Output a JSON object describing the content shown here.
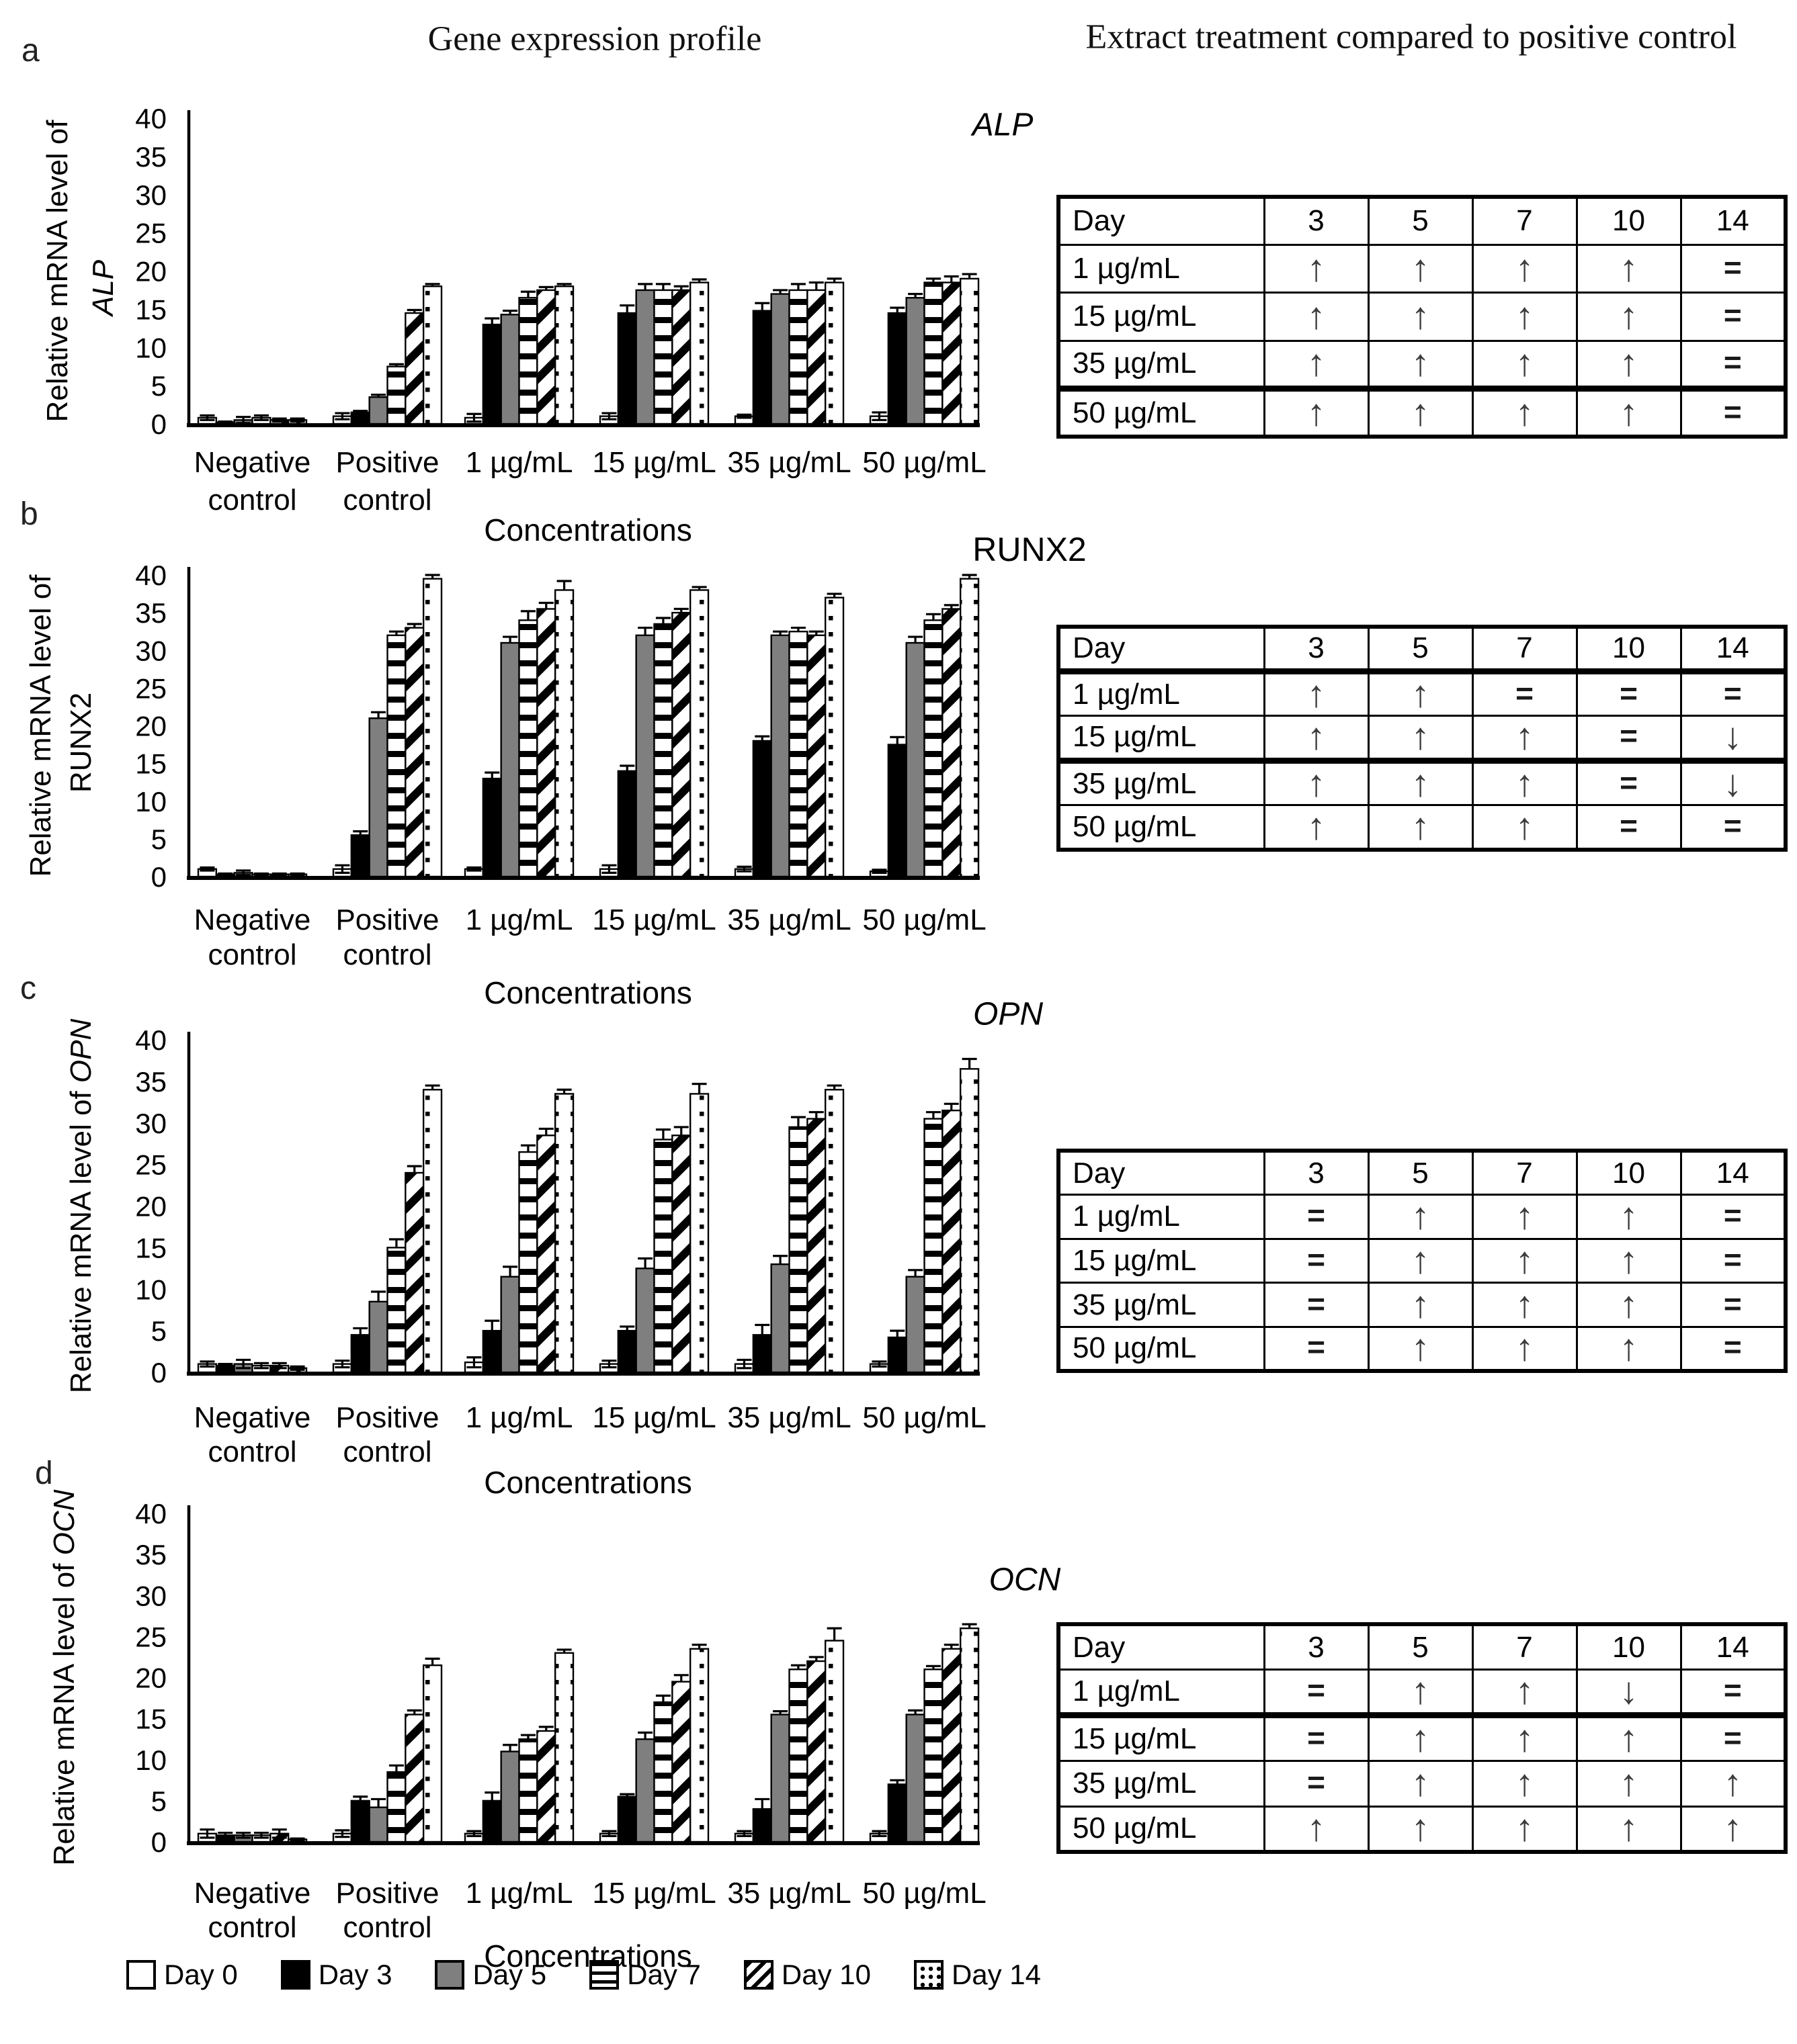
{
  "figure": {
    "panel_labels": [
      "a",
      "b",
      "c",
      "d"
    ],
    "left_title": "Gene expression profile",
    "right_title": "Extract treatment compared to positive control"
  },
  "colors": {
    "ink": "#000000",
    "series_gray": "#7f7f7f",
    "arrow": "#3c3c3c",
    "background": "#ffffff"
  },
  "legend": {
    "items": [
      {
        "label": "Day 0",
        "pattern": "white"
      },
      {
        "label": "Day 3",
        "pattern": "black"
      },
      {
        "label": "Day 5",
        "pattern": "gray"
      },
      {
        "label": "Day 7",
        "pattern": "hlines"
      },
      {
        "label": "Day 10",
        "pattern": "diag"
      },
      {
        "label": "Day 14",
        "pattern": "dots"
      }
    ]
  },
  "chart_data": [
    {
      "panel": "a",
      "type": "bar",
      "title": "ALP",
      "title_italic": true,
      "ylabel": "Relative mRNA level of ALP",
      "ylabel_prefix": "Relative mRNA level of",
      "gene": "ALP",
      "gene_italic": true,
      "xlabel": "Concentrations",
      "ylim": [
        0,
        40
      ],
      "ytick_step": 5,
      "grid": false,
      "legend_position": "bottom-shared",
      "categories": [
        "Negative control",
        "Positive control",
        "1 µg/mL",
        "15 µg/mL",
        "35 µg/mL",
        "50 µg/mL"
      ],
      "series": [
        {
          "name": "Day 0",
          "pattern": "white",
          "values": [
            0.8,
            1.0,
            0.8,
            1.0,
            1.0,
            1.0
          ],
          "errors": [
            0.3,
            0.4,
            0.5,
            0.4,
            0.2,
            0.5
          ]
        },
        {
          "name": "Day 3",
          "pattern": "black",
          "values": [
            0.2,
            1.5,
            13.0,
            14.5,
            14.8,
            14.5
          ],
          "errors": [
            0.1,
            0.2,
            0.8,
            1.0,
            1.0,
            0.7
          ]
        },
        {
          "name": "Day 5",
          "pattern": "gray",
          "values": [
            0.5,
            3.5,
            14.3,
            17.5,
            17.0,
            16.5
          ],
          "errors": [
            0.4,
            0.3,
            0.5,
            0.8,
            0.5,
            0.5
          ]
        },
        {
          "name": "Day 7",
          "pattern": "hlines",
          "values": [
            0.8,
            7.5,
            16.5,
            17.5,
            17.5,
            18.5
          ],
          "errors": [
            0.3,
            0.3,
            0.8,
            0.8,
            0.8,
            0.5
          ]
        },
        {
          "name": "Day 10",
          "pattern": "diag",
          "values": [
            0.5,
            14.5,
            17.5,
            17.5,
            17.5,
            18.5
          ],
          "errors": [
            0.2,
            0.4,
            0.4,
            0.5,
            1.0,
            0.8
          ]
        },
        {
          "name": "Day 14",
          "pattern": "dots",
          "values": [
            0.5,
            18.0,
            18.0,
            18.5,
            18.5,
            19.0
          ],
          "errors": [
            0.2,
            0.3,
            0.3,
            0.4,
            0.5,
            0.6
          ]
        }
      ],
      "comparison_table": {
        "header": [
          "Day",
          "3",
          "5",
          "7",
          "10",
          "14"
        ],
        "rows": [
          {
            "label": "1 µg/mL",
            "cells": [
              "↑",
              "↑",
              "↑",
              "↑",
              "="
            ]
          },
          {
            "label": "15 µg/mL",
            "cells": [
              "↑",
              "↑",
              "↑",
              "↑",
              "="
            ]
          },
          {
            "label": "35 µg/mL",
            "cells": [
              "↑",
              "↑",
              "↑",
              "↑",
              "="
            ]
          },
          {
            "label": "50 µg/mL",
            "cells": [
              "↑",
              "↑",
              "↑",
              "↑",
              "="
            ]
          }
        ]
      }
    },
    {
      "panel": "b",
      "type": "bar",
      "title": "RUNX2",
      "title_italic": false,
      "ylabel": "Relative mRNA level of RUNX2",
      "ylabel_prefix": "Relative mRNA level of",
      "gene": "RUNX2",
      "gene_italic": false,
      "xlabel": "Concentrations",
      "ylim": [
        0,
        40
      ],
      "ytick_step": 5,
      "grid": false,
      "categories": [
        "Negative control",
        "Positive control",
        "1 µg/mL",
        "15 µg/mL",
        "35 µg/mL",
        "50 µg/mL"
      ],
      "series": [
        {
          "name": "Day 0",
          "pattern": "white",
          "values": [
            1.0,
            1.0,
            1.0,
            1.0,
            1.0,
            0.7
          ],
          "errors": [
            0.2,
            0.5,
            0.2,
            0.5,
            0.3,
            0.2
          ]
        },
        {
          "name": "Day 3",
          "pattern": "black",
          "values": [
            0.3,
            5.5,
            13.0,
            14.0,
            18.0,
            17.5
          ],
          "errors": [
            0.1,
            0.5,
            0.8,
            0.7,
            0.6,
            1.0
          ]
        },
        {
          "name": "Day 5",
          "pattern": "gray",
          "values": [
            0.5,
            21.0,
            31.0,
            32.0,
            32.0,
            31.0
          ],
          "errors": [
            0.3,
            0.8,
            0.8,
            1.0,
            0.5,
            0.8
          ]
        },
        {
          "name": "Day 7",
          "pattern": "hlines",
          "values": [
            0.3,
            32.0,
            34.0,
            33.5,
            32.5,
            34.0
          ],
          "errors": [
            0.1,
            0.5,
            1.2,
            0.8,
            0.5,
            0.8
          ]
        },
        {
          "name": "Day 10",
          "pattern": "diag",
          "values": [
            0.3,
            33.0,
            35.5,
            35.0,
            32.0,
            35.5
          ],
          "errors": [
            0.1,
            0.5,
            0.8,
            0.5,
            0.5,
            0.5
          ]
        },
        {
          "name": "Day 14",
          "pattern": "dots",
          "values": [
            0.3,
            39.5,
            38.0,
            38.0,
            37.0,
            39.5
          ],
          "errors": [
            0.1,
            0.5,
            1.2,
            0.4,
            0.5,
            0.5
          ]
        }
      ],
      "comparison_table": {
        "header": [
          "Day",
          "3",
          "5",
          "7",
          "10",
          "14"
        ],
        "rows": [
          {
            "label": "1 µg/mL",
            "cells": [
              "↑",
              "↑",
              "=",
              "=",
              "="
            ]
          },
          {
            "label": "15 µg/mL",
            "cells": [
              "↑",
              "↑",
              "↑",
              "=",
              "↓"
            ]
          },
          {
            "label": "35 µg/mL",
            "cells": [
              "↑",
              "↑",
              "↑",
              "=",
              "↓"
            ]
          },
          {
            "label": "50 µg/mL",
            "cells": [
              "↑",
              "↑",
              "↑",
              "=",
              "="
            ]
          }
        ]
      }
    },
    {
      "panel": "c",
      "type": "bar",
      "title": "OPN",
      "title_italic": true,
      "ylabel": "Relative mRNA level of OPN",
      "ylabel_prefix": "Relative mRNA level of",
      "gene": "OPN",
      "gene_italic": true,
      "xlabel": "Concentrations",
      "ylim": [
        0,
        40
      ],
      "ytick_step": 5,
      "grid": false,
      "categories": [
        "Negative control",
        "Positive control",
        "1 µg/mL",
        "15 µg/mL",
        "35 µg/mL",
        "50 µg/mL"
      ],
      "series": [
        {
          "name": "Day 0",
          "pattern": "white",
          "values": [
            1.0,
            1.0,
            1.2,
            1.0,
            1.0,
            1.0
          ],
          "errors": [
            0.3,
            0.4,
            0.6,
            0.4,
            0.5,
            0.3
          ]
        },
        {
          "name": "Day 3",
          "pattern": "black",
          "values": [
            0.8,
            4.5,
            5.0,
            5.0,
            4.5,
            4.2
          ],
          "errors": [
            0.2,
            0.8,
            1.2,
            0.5,
            1.2,
            0.8
          ]
        },
        {
          "name": "Day 5",
          "pattern": "gray",
          "values": [
            1.0,
            8.5,
            11.5,
            12.5,
            13.0,
            11.5
          ],
          "errors": [
            0.5,
            1.2,
            1.2,
            1.2,
            1.0,
            0.8
          ]
        },
        {
          "name": "Day 7",
          "pattern": "hlines",
          "values": [
            0.8,
            15.0,
            26.5,
            28.0,
            29.5,
            30.5
          ],
          "errors": [
            0.3,
            1.0,
            0.8,
            1.2,
            1.2,
            0.8
          ]
        },
        {
          "name": "Day 10",
          "pattern": "diag",
          "values": [
            0.8,
            24.0,
            28.5,
            28.5,
            30.5,
            31.5
          ],
          "errors": [
            0.3,
            0.8,
            0.8,
            1.0,
            0.8,
            0.8
          ]
        },
        {
          "name": "Day 14",
          "pattern": "dots",
          "values": [
            0.5,
            34.0,
            33.5,
            33.5,
            34.0,
            36.5
          ],
          "errors": [
            0.2,
            0.5,
            0.5,
            1.2,
            0.5,
            1.2
          ]
        }
      ],
      "comparison_table": {
        "header": [
          "Day",
          "3",
          "5",
          "7",
          "10",
          "14"
        ],
        "rows": [
          {
            "label": "1 µg/mL",
            "cells": [
              "=",
              "↑",
              "↑",
              "↑",
              "="
            ]
          },
          {
            "label": "15 µg/mL",
            "cells": [
              "=",
              "↑",
              "↑",
              "↑",
              "="
            ]
          },
          {
            "label": "35 µg/mL",
            "cells": [
              "=",
              "↑",
              "↑",
              "↑",
              "="
            ]
          },
          {
            "label": "50 µg/mL",
            "cells": [
              "=",
              "↑",
              "↑",
              "↑",
              "="
            ]
          }
        ]
      }
    },
    {
      "panel": "d",
      "type": "bar",
      "title": "OCN",
      "title_italic": true,
      "ylabel": "Relative mRNA level of OCN",
      "ylabel_prefix": "Relative mRNA level of",
      "gene": "OCN",
      "gene_italic": true,
      "xlabel": "Concentrations",
      "ylim": [
        0,
        40
      ],
      "ytick_step": 5,
      "grid": false,
      "categories": [
        "Negative control",
        "Positive control",
        "1 µg/mL",
        "15 µg/mL",
        "35 µg/mL",
        "50 µg/mL"
      ],
      "series": [
        {
          "name": "Day 0",
          "pattern": "white",
          "values": [
            1.0,
            1.0,
            1.0,
            1.0,
            1.0,
            1.0
          ],
          "errors": [
            0.5,
            0.4,
            0.3,
            0.3,
            0.3,
            0.3
          ]
        },
        {
          "name": "Day 3",
          "pattern": "black",
          "values": [
            0.8,
            5.0,
            5.0,
            5.5,
            4.0,
            7.0
          ],
          "errors": [
            0.3,
            0.5,
            1.0,
            0.3,
            1.2,
            0.5
          ]
        },
        {
          "name": "Day 5",
          "pattern": "gray",
          "values": [
            0.8,
            4.2,
            11.0,
            12.5,
            15.5,
            15.5
          ],
          "errors": [
            0.3,
            1.0,
            0.8,
            0.8,
            0.4,
            0.5
          ]
        },
        {
          "name": "Day 7",
          "pattern": "hlines",
          "values": [
            0.8,
            8.5,
            12.5,
            17.0,
            21.0,
            21.0
          ],
          "errors": [
            0.3,
            0.8,
            0.5,
            0.8,
            0.5,
            0.4
          ]
        },
        {
          "name": "Day 10",
          "pattern": "diag",
          "values": [
            1.0,
            15.5,
            13.5,
            19.5,
            22.0,
            23.5
          ],
          "errors": [
            0.5,
            0.5,
            0.5,
            0.8,
            0.5,
            0.5
          ]
        },
        {
          "name": "Day 14",
          "pattern": "dots",
          "values": [
            0.3,
            21.5,
            23.0,
            23.5,
            24.5,
            26.0
          ],
          "errors": [
            0.1,
            0.8,
            0.4,
            0.5,
            1.5,
            0.5
          ]
        }
      ],
      "comparison_table": {
        "header": [
          "Day",
          "3",
          "5",
          "7",
          "10",
          "14"
        ],
        "rows": [
          {
            "label": "1 µg/mL",
            "cells": [
              "=",
              "↑",
              "↑",
              "↓",
              "="
            ]
          },
          {
            "label": "15 µg/mL",
            "cells": [
              "=",
              "↑",
              "↑",
              "↑",
              "="
            ]
          },
          {
            "label": "35 µg/mL",
            "cells": [
              "=",
              "↑",
              "↑",
              "↑",
              "↑"
            ]
          },
          {
            "label": "50 µg/mL",
            "cells": [
              "↑",
              "↑",
              "↑",
              "↑",
              "↑"
            ]
          }
        ]
      }
    }
  ]
}
